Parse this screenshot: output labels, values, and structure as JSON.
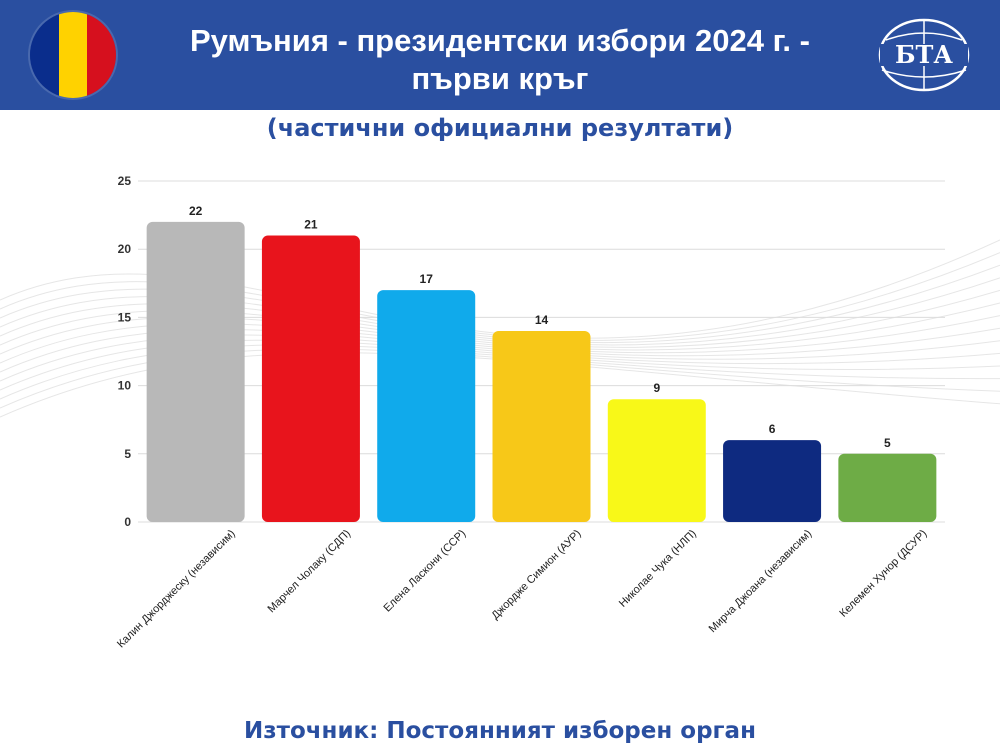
{
  "header": {
    "title_line1": "Румъния - президентски избори 2024 г. -",
    "title_line2": "първи кръг",
    "logo_text": "БТА",
    "flag_colors": [
      "#0a2d8c",
      "#ffd200",
      "#d6101e"
    ],
    "background": "#2a4fa0"
  },
  "subtitle": "(частични официални резултати)",
  "source": "Източник: Постоянният изборен орган",
  "chart_data": {
    "type": "bar",
    "categories": [
      "Калин Джорджеску (независим)",
      "Марчел Чолаку (СДП)",
      "Елена Ласкони (ССР)",
      "Джордже Симион (АУР)",
      "Николае Чука (НЛП)",
      "Мирча Джоана (независим)",
      "Келемен Хунор (ДСУР)"
    ],
    "values": [
      22,
      21,
      17,
      14,
      9,
      6,
      5
    ],
    "colors": [
      "#b8b8b8",
      "#e8141c",
      "#10aaeb",
      "#f7c818",
      "#f8f818",
      "#0e2a80",
      "#6eac46"
    ],
    "ylim": [
      0,
      25
    ],
    "yticks": [
      0,
      5,
      10,
      15,
      20,
      25
    ],
    "grid": true,
    "title": "",
    "xlabel": "",
    "ylabel": ""
  }
}
